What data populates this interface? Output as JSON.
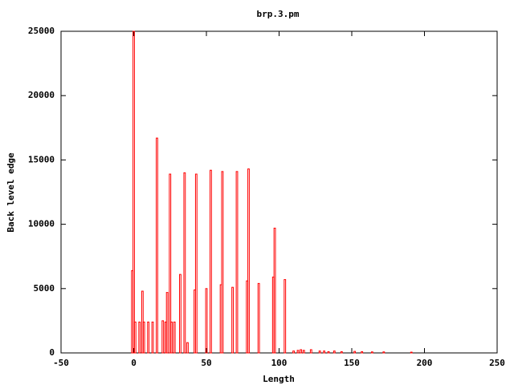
{
  "chart_data": {
    "type": "bar",
    "title": "brp.3.pm",
    "x_label": "Length",
    "y_label": "Back level edge",
    "x": [
      -1,
      0,
      1,
      4,
      6,
      7,
      10,
      13,
      16,
      20,
      22,
      23,
      25,
      26,
      28,
      32,
      35,
      37,
      42,
      43,
      50,
      53,
      60,
      61,
      68,
      71,
      78,
      79,
      86,
      96,
      97,
      104,
      110,
      113,
      115,
      117,
      122,
      128,
      131,
      134,
      138,
      143,
      152,
      157,
      164,
      172,
      191
    ],
    "values": [
      6400,
      25000,
      2400,
      2400,
      4800,
      2400,
      2400,
      2400,
      16700,
      2500,
      2400,
      4700,
      13900,
      2400,
      2400,
      6100,
      14000,
      800,
      4900,
      13900,
      5000,
      14200,
      5300,
      14100,
      5100,
      14100,
      5600,
      14300,
      5400,
      5900,
      9700,
      5700,
      150,
      200,
      250,
      200,
      250,
      150,
      150,
      100,
      150,
      100,
      120,
      100,
      80,
      80,
      60
    ],
    "color": "#ff0000",
    "xlim": [
      -50,
      250
    ],
    "xticks": [
      -50,
      0,
      50,
      100,
      150,
      200,
      250
    ],
    "ylim": [
      0,
      25000
    ],
    "yticks": [
      0,
      5000,
      10000,
      15000,
      20000,
      25000
    ]
  }
}
